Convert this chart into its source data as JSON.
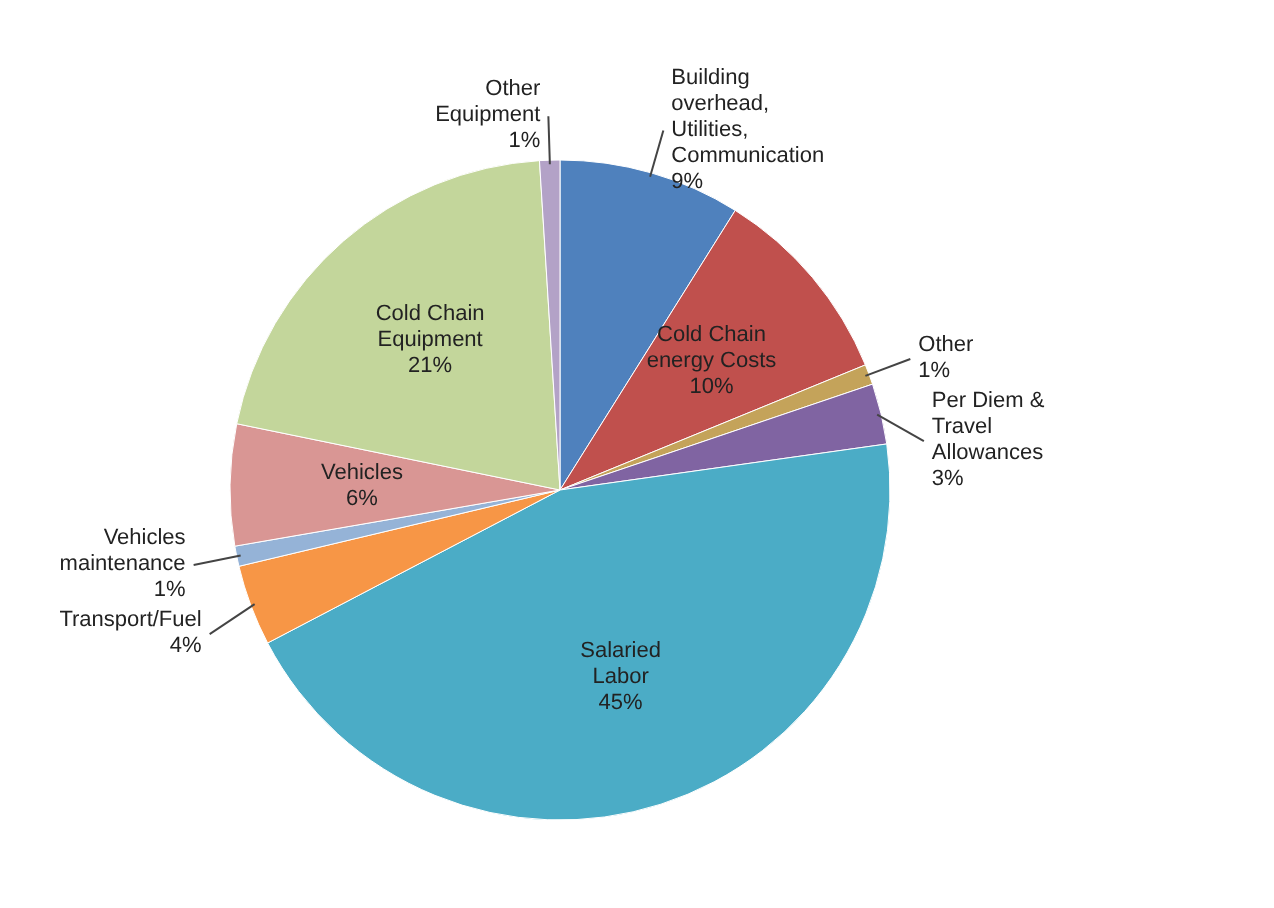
{
  "chart_data": {
    "type": "pie",
    "categories": [
      "Building overhead, Utilities, Communication",
      "Cold Chain energy Costs",
      "Other",
      "Per Diem & Travel Allowances",
      "Salaried Labor",
      "Transport/Fuel",
      "Vehicles maintenance",
      "Vehicles",
      "Cold Chain Equipment",
      "Other Equipment"
    ],
    "values": [
      9,
      10,
      1,
      3,
      45,
      4,
      1,
      6,
      21,
      1
    ],
    "value_labels": [
      "9%",
      "10%",
      "1%",
      "3%",
      "45%",
      "4%",
      "1%",
      "6%",
      "21%",
      "1%"
    ],
    "colors": [
      "#4f81bd",
      "#c0504d",
      "#c4a35a",
      "#8064a2",
      "#4bacc6",
      "#f79646",
      "#95b3d7",
      "#d99694",
      "#c3d69b",
      "#b3a2c7"
    ]
  }
}
